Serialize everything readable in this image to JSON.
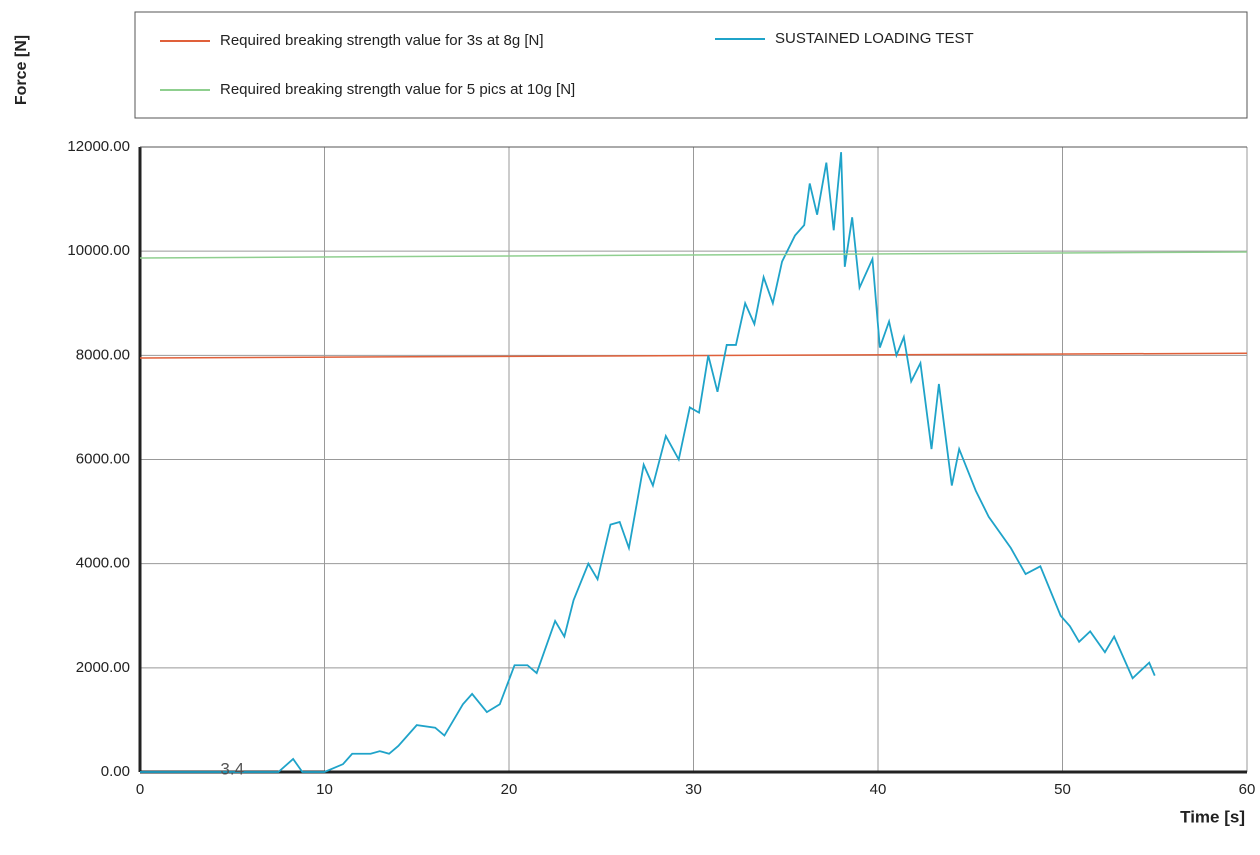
{
  "chart_data": {
    "type": "line",
    "x_label": "Time [s]",
    "y_label": "Force [N]",
    "annotation": {
      "text": "3.4",
      "x": 5,
      "y": 0
    },
    "grid": true,
    "xlim": [
      0,
      60
    ],
    "ylim": [
      0,
      12000
    ],
    "xticks": [
      0,
      10,
      20,
      30,
      40,
      50,
      60
    ],
    "yticks": [
      {
        "value": 0,
        "label": "0.00"
      },
      {
        "value": 2000,
        "label": "2000.00"
      },
      {
        "value": 4000,
        "label": "4000.00"
      },
      {
        "value": 6000,
        "label": "6000.00"
      },
      {
        "value": 8000,
        "label": "8000.00"
      },
      {
        "value": 10000,
        "label": "10000.00"
      },
      {
        "value": 12000,
        "label": "12000.00"
      }
    ],
    "series": [
      {
        "name": "Required breaking strength value for 3s at 8g [N]",
        "color": "#e0603a",
        "x": [
          0,
          60
        ],
        "values": [
          7950,
          8040
        ]
      },
      {
        "name": "SUSTAINED LOADING TEST",
        "color": "#1fa3c9",
        "x": [
          0,
          7.5,
          8.3,
          8.8,
          10,
          11,
          11.5,
          12.5,
          13,
          13.5,
          14,
          15,
          16,
          16.5,
          17.5,
          18,
          18.8,
          19.5,
          20.3,
          21,
          21.5,
          22.5,
          23,
          23.5,
          24.3,
          24.8,
          25.5,
          26,
          26.5,
          27.3,
          27.8,
          28.5,
          29.2,
          29.8,
          30.3,
          30.8,
          31.3,
          31.8,
          32.3,
          32.8,
          33.3,
          33.8,
          34.3,
          34.8,
          35.5,
          36,
          36.3,
          36.7,
          37.2,
          37.6,
          38,
          38.2,
          38.6,
          39,
          39.7,
          40.1,
          40.6,
          41,
          41.4,
          41.8,
          42.3,
          42.9,
          43.3,
          44,
          44.4,
          45.3,
          46,
          47.2,
          48,
          48.8,
          49.9,
          50.4,
          50.9,
          51.5,
          52.3,
          52.8,
          53.8,
          54.7,
          55
        ],
        "values": [
          0,
          0,
          250,
          0,
          0,
          150,
          350,
          350,
          400,
          350,
          500,
          900,
          850,
          700,
          1300,
          1500,
          1150,
          1300,
          2050,
          2050,
          1900,
          2900,
          2600,
          3300,
          4000,
          3700,
          4750,
          4800,
          4300,
          5900,
          5500,
          6450,
          6000,
          7000,
          6900,
          8000,
          7300,
          8200,
          8200,
          9000,
          8600,
          9500,
          9000,
          9800,
          10300,
          10500,
          11300,
          10700,
          11700,
          10400,
          11900,
          9700,
          10650,
          9300,
          9850,
          8150,
          8650,
          8000,
          8350,
          7500,
          7850,
          6200,
          7450,
          5500,
          6200,
          5400,
          4900,
          4300,
          3800,
          3950,
          3000,
          2800,
          2500,
          2700,
          2300,
          2600,
          1800,
          2100,
          1850
        ]
      },
      {
        "name": "Required breaking strength value for 5 pics at 10g [N]",
        "color": "#8fcf8f",
        "x": [
          0,
          60
        ],
        "values": [
          9870,
          9985
        ]
      }
    ]
  }
}
